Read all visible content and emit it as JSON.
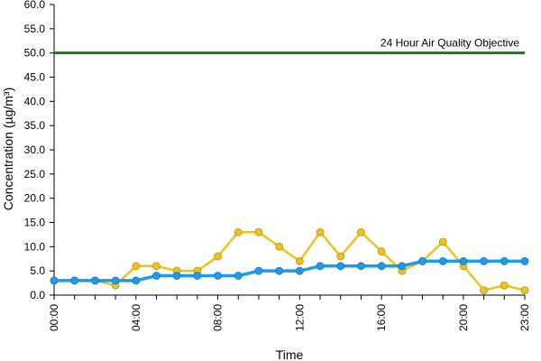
{
  "chart_data": {
    "type": "line",
    "xlabel": "Time",
    "ylabel": "Concentration (µg/m³)",
    "ylim": [
      0,
      60
    ],
    "y_ticks": [
      "0.0",
      "5.0",
      "10.0",
      "15.0",
      "20.0",
      "25.0",
      "30.0",
      "35.0",
      "40.0",
      "45.0",
      "50.0",
      "55.0",
      "60.0"
    ],
    "x_ticks": [
      {
        "label": "00:00",
        "hour": 0
      },
      {
        "label": "04:00",
        "hour": 4
      },
      {
        "label": "08:00",
        "hour": 8
      },
      {
        "label": "12:00",
        "hour": 12
      },
      {
        "label": "16:00",
        "hour": 16
      },
      {
        "label": "20:00",
        "hour": 20
      },
      {
        "label": "23:00",
        "hour": 23
      }
    ],
    "x_hours": [
      0,
      1,
      2,
      3,
      4,
      5,
      6,
      7,
      8,
      9,
      10,
      11,
      12,
      13,
      14,
      15,
      16,
      17,
      18,
      19,
      20,
      21,
      22,
      23
    ],
    "grid": false,
    "series": [
      {
        "color": "#f0c21b",
        "values": [
          3,
          3,
          3,
          2,
          6,
          6,
          5,
          5,
          8,
          13,
          13,
          10,
          7,
          13,
          8,
          13,
          9,
          5,
          7,
          11,
          6,
          1,
          2,
          1
        ]
      },
      {
        "color": "#1e9be9",
        "values": [
          3,
          3,
          3,
          3,
          3,
          4,
          4,
          4,
          4,
          4,
          5,
          5,
          5,
          6,
          6,
          6,
          6,
          6,
          7,
          7,
          7,
          7,
          7,
          7
        ]
      }
    ],
    "reference_line": {
      "value": 50,
      "label": "24 Hour Air Quality Objective",
      "color": "#1a7a1a"
    }
  }
}
